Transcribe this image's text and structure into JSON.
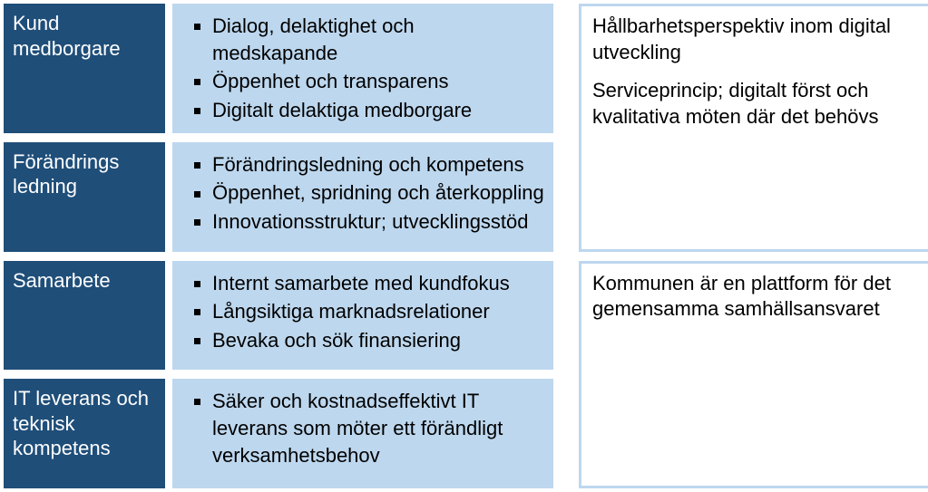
{
  "colors": {
    "label_bg": "#1f4e79",
    "label_text": "#ffffff",
    "bullets_bg": "#bdd7ee",
    "bullets_text": "#000000",
    "right_border": "#bdd7ee",
    "right_bg": "#ffffff",
    "right_text": "#000000",
    "bullet_marker": "#000000"
  },
  "typography": {
    "family": "Arial",
    "size_pt": 16
  },
  "rows": [
    {
      "label": "Kund medborgare",
      "bullets": [
        "Dialog, delaktighet och medskapande",
        "Öppenhet och transparens",
        "Digitalt delaktiga medborgare"
      ]
    },
    {
      "label": "Förändrings ledning",
      "bullets": [
        "Förändringsledning och kompetens",
        "Öppenhet, spridning och återkoppling",
        "Innovationsstruktur; utvecklingsstöd"
      ]
    },
    {
      "label": "Samarbete",
      "bullets": [
        "Internt samarbete med kundfokus",
        "Långsiktiga marknadsrelationer",
        "Bevaka och sök finansiering"
      ]
    },
    {
      "label": "IT leverans och teknisk kompetens",
      "bullets": [
        "Säker och kostnadseffektivt IT leverans som möter ett förändligt verksamhetsbehov"
      ]
    }
  ],
  "right": {
    "top": {
      "p1": "Hållbarhetsperspektiv inom digital utveckling",
      "p2": "Serviceprincip; digitalt först och kvalitativa möten där det behövs"
    },
    "bottom": {
      "p1": "Kommunen är en plattform för det gemensamma samhällsansvaret"
    }
  }
}
